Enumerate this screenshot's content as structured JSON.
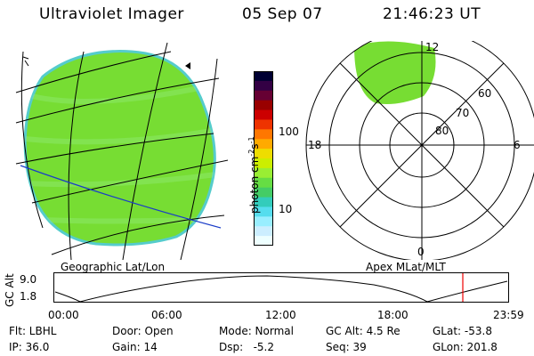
{
  "header": {
    "title": "Ultraviolet Imager",
    "date": "05 Sep 07",
    "time": "21:46:23 UT"
  },
  "colorbar": {
    "label": "photon cm",
    "label_exp1": "-2",
    "label_mid": "s",
    "label_exp2": "-1",
    "ticks": [
      "100",
      "10"
    ],
    "colors_top_to_bottom": [
      "#000033",
      "#330044",
      "#660033",
      "#990000",
      "#cc0000",
      "#ee3300",
      "#ff7700",
      "#ffaa00",
      "#eedd00",
      "#ccee00",
      "#99ee33",
      "#66dd44",
      "#44cc66",
      "#33ccbb",
      "#55ddee",
      "#99eeff",
      "#cceeff",
      "#eeffff"
    ]
  },
  "left_panel": {
    "caption": "Geographic Lat/Lon",
    "fill_color": "#77dd33"
  },
  "right_panel": {
    "caption": "Apex MLat/MLT",
    "mlt_labels": {
      "top": "12",
      "left": "18",
      "right": "6",
      "bottom": "0"
    },
    "lat_labels": [
      "60",
      "70",
      "80"
    ],
    "fill_color": "#77dd33"
  },
  "altitude_plot": {
    "axis_label": "GC Alt",
    "y_ticks": [
      "9.0",
      "1.8"
    ],
    "x_ticks": [
      "00:00",
      "06:00",
      "12:00",
      "18:00",
      "23:59"
    ],
    "marker_color": "#ee0000"
  },
  "info": {
    "flt": "Flt: LBHL",
    "door": "Door: Open",
    "mode": "Mode: Normal",
    "gc_alt": "GC Alt: 4.5 Re",
    "glat": "GLat: -53.8",
    "ip": "IP: 36.0",
    "gain": "Gain: 14",
    "dsp": "Dsp:   -5.2",
    "seq": "Seq: 39",
    "glon": "GLon: 201.8"
  }
}
